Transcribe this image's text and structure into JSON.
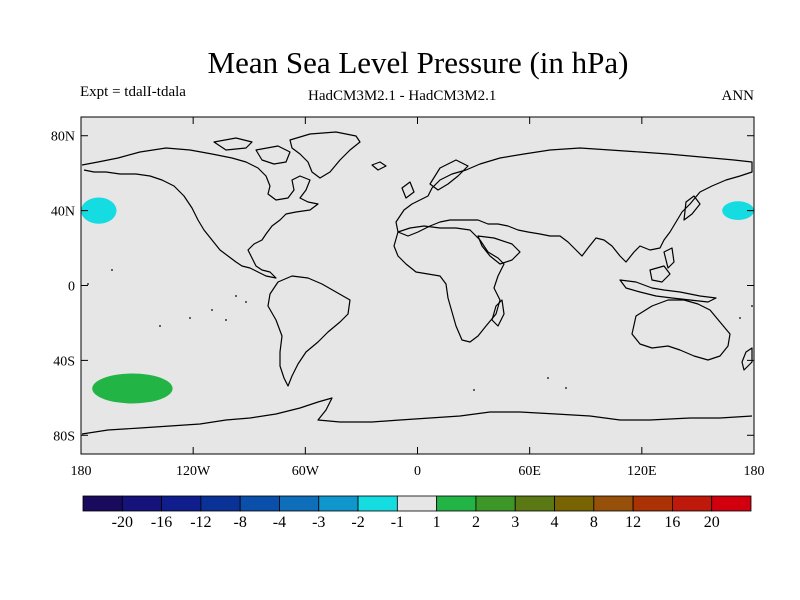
{
  "title": "Mean Sea Level Pressure (in hPa)",
  "experiment": "Expt = tdalI-tdala",
  "model": "HadCM3M2.1 - HadCM3M2.1",
  "season": "ANN",
  "map": {
    "projection": "cylindrical equidistant",
    "lon_range": [
      -180,
      180
    ],
    "lat_range": [
      -90,
      90
    ],
    "ocean_color": "#e6e6e6",
    "coastline_color": "#000000"
  },
  "axes": {
    "y_ticks": [
      {
        "value": 80,
        "label": "80N"
      },
      {
        "value": 40,
        "label": "40N"
      },
      {
        "value": 0,
        "label": "0"
      },
      {
        "value": -40,
        "label": "40S"
      },
      {
        "value": -80,
        "label": "80S"
      }
    ],
    "x_ticks": [
      {
        "value": -180,
        "label": "180"
      },
      {
        "value": -120,
        "label": "120W"
      },
      {
        "value": -60,
        "label": "60W"
      },
      {
        "value": 0,
        "label": "0"
      },
      {
        "value": 60,
        "label": "60E"
      },
      {
        "value": 120,
        "label": "120E"
      },
      {
        "value": 180,
        "label": "180"
      }
    ]
  },
  "colorbar": {
    "colors": [
      "#1a0a5e",
      "#15127a",
      "#0f1e8c",
      "#0a3296",
      "#0a50aa",
      "#0f6eb9",
      "#0f96cd",
      "#14dce1",
      "#e6e6e6",
      "#23b446",
      "#3c9628",
      "#5a7814",
      "#786405",
      "#96500a",
      "#aa3205",
      "#be190a",
      "#d2000f"
    ],
    "labels": [
      "-20",
      "-16",
      "-12",
      "-8",
      "-4",
      "-3",
      "-2",
      "-1",
      "1",
      "2",
      "3",
      "4",
      "8",
      "12",
      "16",
      "20"
    ]
  },
  "chart_data": {
    "type": "heatmap",
    "title": "Mean Sea Level Pressure (in hPa)",
    "xlim": [
      -180,
      180
    ],
    "ylim": [
      -90,
      90
    ],
    "levels": [
      -20,
      -16,
      -12,
      -8,
      -4,
      -3,
      -2,
      -1,
      1,
      2,
      3,
      4,
      8,
      12,
      16,
      20
    ],
    "regions": [
      {
        "range": "-2 to -1",
        "color": "#14dce1",
        "lon": [
          -180,
          -161
        ],
        "lat": [
          33,
          47
        ]
      },
      {
        "range": "-2 to -1",
        "color": "#14dce1",
        "lon": [
          163,
          180
        ],
        "lat": [
          35,
          45
        ]
      },
      {
        "range": "1 to 2",
        "color": "#23b446",
        "lon": [
          -174,
          -131
        ],
        "lat": [
          -63,
          -47
        ]
      }
    ]
  }
}
